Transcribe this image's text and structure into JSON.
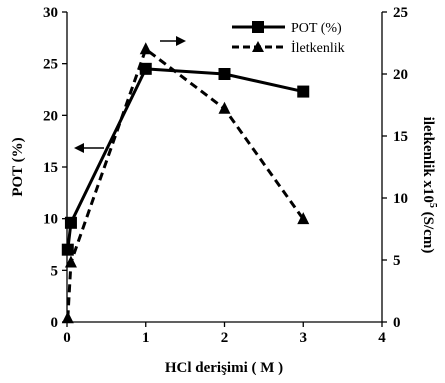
{
  "chart_data": {
    "type": "line",
    "xlabel": "HCl derişimi ( M )",
    "ylabel_left": "POT (%)",
    "ylabel_right_main": "iletkenlik x10",
    "ylabel_right_sup": "5",
    "ylabel_right_unit": " (S/cm)",
    "xlim": [
      0,
      4
    ],
    "ylim_left": [
      0,
      30
    ],
    "ylim_right": [
      0,
      25
    ],
    "x_ticks": [
      "0",
      "1",
      "2",
      "3",
      "4"
    ],
    "y_left_ticks": [
      "0",
      "5",
      "10",
      "15",
      "20",
      "25",
      "30"
    ],
    "y_right_ticks": [
      "0",
      "5",
      "10",
      "15",
      "20",
      "25"
    ],
    "grid": false,
    "legend_position": "top-right",
    "series": [
      {
        "name": "POT (%)",
        "axis": "left",
        "style": "solid",
        "marker": "square",
        "x": [
          0.01,
          0.05,
          1,
          2,
          3
        ],
        "y": [
          7.0,
          9.6,
          24.5,
          24.0,
          22.3
        ]
      },
      {
        "name": "İletkenlik",
        "axis": "right",
        "style": "dashed",
        "marker": "triangle",
        "x": [
          0.01,
          0.05,
          1,
          2,
          3
        ],
        "y": [
          0.3,
          4.8,
          22.0,
          17.2,
          8.3
        ]
      }
    ]
  }
}
